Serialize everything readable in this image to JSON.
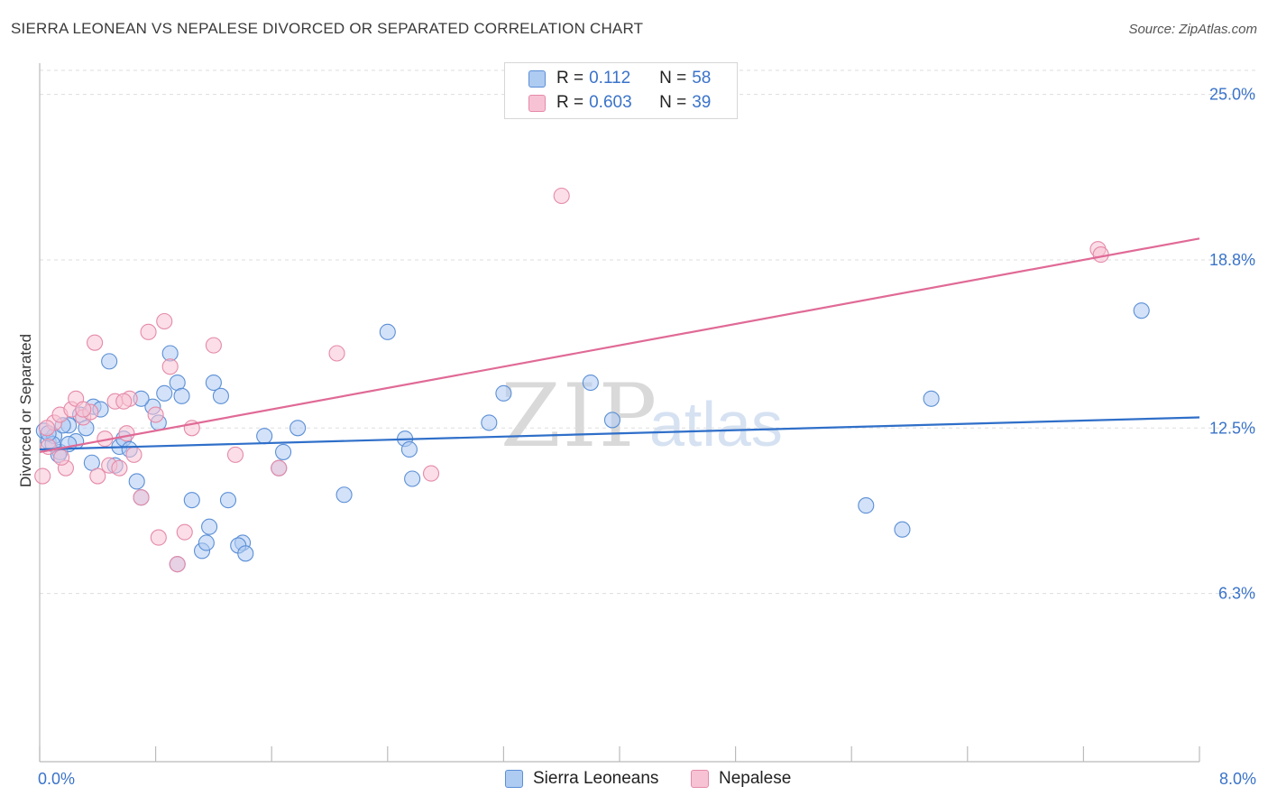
{
  "header": {
    "title": "SIERRA LEONEAN VS NEPALESE DIVORCED OR SEPARATED CORRELATION CHART",
    "source": "Source: ZipAtlas.com"
  },
  "watermark": {
    "zip": "ZIP",
    "atlas": "atlas"
  },
  "legend": {
    "rows": [
      {
        "r_label": "R =",
        "r_value": "0.112",
        "n_label": "N =",
        "n_value": "58"
      },
      {
        "r_label": "R =",
        "r_value": "0.603",
        "n_label": "N =",
        "n_value": "39"
      }
    ]
  },
  "bottom_legend": {
    "items": [
      "Sierra Leoneans",
      "Nepalese"
    ]
  },
  "colors": {
    "blue_fill": "#aecbf2",
    "blue_stroke": "#5b8fd6",
    "blue_line": "#2f6fc9",
    "pink_fill": "#f7c3d4",
    "pink_stroke": "#e58aa8",
    "pink_line": "#e06a96",
    "tick_text": "#3a73c9",
    "grid": "#dddddd"
  },
  "chart_data": {
    "type": "scatter",
    "title": "SIERRA LEONEAN VS NEPALESE DIVORCED OR SEPARATED CORRELATION CHART",
    "xlabel": "",
    "ylabel": "Divorced or Separated",
    "xlim": [
      0,
      8.0
    ],
    "ylim": [
      0,
      25.9
    ],
    "x_tick_labels": [
      {
        "value": 0,
        "label": "0.0%"
      },
      {
        "value": 8.0,
        "label": "8.0%"
      }
    ],
    "y_tick_labels": [
      {
        "value": 6.3,
        "label": "6.3%"
      },
      {
        "value": 12.5,
        "label": "12.5%"
      },
      {
        "value": 18.8,
        "label": "18.8%"
      },
      {
        "value": 25.0,
        "label": "25.0%"
      }
    ],
    "grid": "horizontal dashed",
    "series": [
      {
        "name": "Sierra Leoneans",
        "color": "blue",
        "trend": {
          "x": [
            0,
            8.0
          ],
          "y": [
            11.7,
            12.9
          ]
        },
        "points": [
          [
            0.03,
            12.4
          ],
          [
            0.06,
            12.0
          ],
          [
            0.1,
            12.2
          ],
          [
            0.14,
            11.6
          ],
          [
            0.09,
            11.9
          ],
          [
            0.2,
            12.6
          ],
          [
            0.25,
            12.0
          ],
          [
            0.28,
            13.0
          ],
          [
            0.32,
            12.5
          ],
          [
            0.37,
            13.3
          ],
          [
            0.42,
            13.2
          ],
          [
            0.48,
            15.0
          ],
          [
            0.36,
            11.2
          ],
          [
            0.52,
            11.1
          ],
          [
            0.55,
            11.8
          ],
          [
            0.58,
            12.1
          ],
          [
            0.62,
            11.7
          ],
          [
            0.67,
            10.5
          ],
          [
            0.7,
            9.9
          ],
          [
            0.78,
            13.3
          ],
          [
            0.82,
            12.7
          ],
          [
            0.86,
            13.8
          ],
          [
            0.9,
            15.3
          ],
          [
            0.95,
            14.2
          ],
          [
            0.98,
            13.7
          ],
          [
            1.05,
            9.8
          ],
          [
            1.12,
            7.9
          ],
          [
            1.15,
            8.2
          ],
          [
            1.17,
            8.8
          ],
          [
            1.2,
            14.2
          ],
          [
            1.3,
            9.8
          ],
          [
            1.4,
            8.2
          ],
          [
            1.37,
            8.1
          ],
          [
            1.42,
            7.8
          ],
          [
            1.55,
            12.2
          ],
          [
            1.65,
            11.0
          ],
          [
            1.68,
            11.6
          ],
          [
            1.78,
            12.5
          ],
          [
            2.1,
            10.0
          ],
          [
            2.4,
            16.1
          ],
          [
            2.52,
            12.1
          ],
          [
            2.55,
            11.7
          ],
          [
            2.57,
            10.6
          ],
          [
            3.1,
            12.7
          ],
          [
            3.2,
            13.8
          ],
          [
            3.8,
            14.2
          ],
          [
            3.95,
            12.8
          ],
          [
            5.7,
            9.6
          ],
          [
            5.95,
            8.7
          ],
          [
            6.15,
            13.6
          ],
          [
            7.6,
            16.9
          ],
          [
            0.7,
            13.6
          ],
          [
            0.13,
            11.5
          ],
          [
            0.2,
            11.9
          ],
          [
            0.06,
            12.3
          ],
          [
            0.95,
            7.4
          ],
          [
            0.16,
            12.6
          ],
          [
            1.25,
            13.7
          ]
        ]
      },
      {
        "name": "Nepalese",
        "color": "pink",
        "trend": {
          "x": [
            0,
            8.0
          ],
          "y": [
            11.6,
            19.6
          ]
        },
        "points": [
          [
            0.02,
            10.7
          ],
          [
            0.06,
            11.8
          ],
          [
            0.1,
            12.7
          ],
          [
            0.14,
            13.0
          ],
          [
            0.18,
            11.0
          ],
          [
            0.22,
            13.2
          ],
          [
            0.25,
            13.6
          ],
          [
            0.3,
            12.9
          ],
          [
            0.35,
            13.1
          ],
          [
            0.4,
            10.7
          ],
          [
            0.45,
            12.1
          ],
          [
            0.48,
            11.1
          ],
          [
            0.52,
            13.5
          ],
          [
            0.55,
            11.0
          ],
          [
            0.6,
            12.3
          ],
          [
            0.62,
            13.6
          ],
          [
            0.65,
            11.5
          ],
          [
            0.7,
            9.9
          ],
          [
            0.75,
            16.1
          ],
          [
            0.8,
            13.0
          ],
          [
            0.82,
            8.4
          ],
          [
            0.86,
            16.5
          ],
          [
            0.9,
            14.8
          ],
          [
            0.95,
            7.4
          ],
          [
            1.0,
            8.6
          ],
          [
            1.05,
            12.5
          ],
          [
            1.2,
            15.6
          ],
          [
            1.35,
            11.5
          ],
          [
            1.65,
            11.0
          ],
          [
            2.05,
            15.3
          ],
          [
            2.7,
            10.8
          ],
          [
            3.6,
            21.2
          ],
          [
            7.3,
            19.2
          ],
          [
            7.32,
            19.0
          ],
          [
            0.38,
            15.7
          ],
          [
            0.58,
            13.5
          ],
          [
            0.15,
            11.4
          ],
          [
            0.3,
            13.2
          ],
          [
            0.05,
            12.5
          ]
        ]
      }
    ]
  }
}
